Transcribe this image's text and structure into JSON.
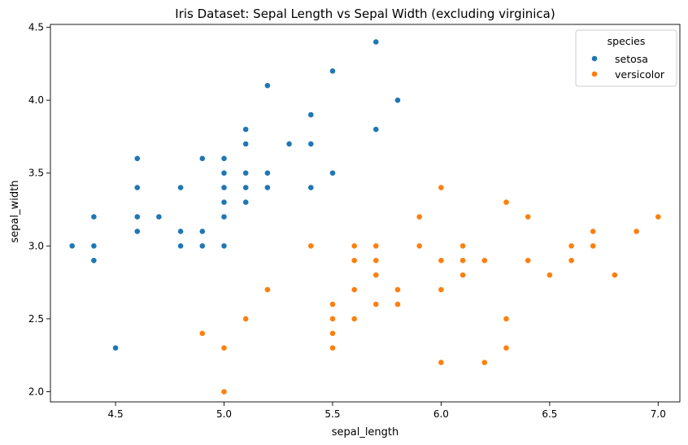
{
  "chart_data": {
    "type": "scatter",
    "title": "Iris Dataset: Sepal Length vs Sepal Width (excluding virginica)",
    "xlabel": "sepal_length",
    "ylabel": "sepal_width",
    "xlim": [
      4.2,
      7.1
    ],
    "ylim": [
      1.93,
      4.52
    ],
    "xticks": [
      "4.5",
      "5.0",
      "5.5",
      "6.0",
      "6.5",
      "7.0"
    ],
    "yticks": [
      "2.0",
      "2.5",
      "3.0",
      "3.5",
      "4.0",
      "4.5"
    ],
    "grid": false,
    "legend": {
      "title": "species",
      "position": "top-right"
    },
    "series": [
      {
        "name": "setosa",
        "color": "#1f77b4",
        "points": [
          [
            4.3,
            3.0
          ],
          [
            4.4,
            2.9
          ],
          [
            4.4,
            3.0
          ],
          [
            4.4,
            3.2
          ],
          [
            4.5,
            2.3
          ],
          [
            4.6,
            3.1
          ],
          [
            4.6,
            3.2
          ],
          [
            4.6,
            3.4
          ],
          [
            4.6,
            3.6
          ],
          [
            4.7,
            3.2
          ],
          [
            4.8,
            3.0
          ],
          [
            4.8,
            3.1
          ],
          [
            4.8,
            3.4
          ],
          [
            4.9,
            3.0
          ],
          [
            4.9,
            3.1
          ],
          [
            4.9,
            3.6
          ],
          [
            5.0,
            3.0
          ],
          [
            5.0,
            3.2
          ],
          [
            5.0,
            3.3
          ],
          [
            5.0,
            3.4
          ],
          [
            5.0,
            3.5
          ],
          [
            5.0,
            3.6
          ],
          [
            5.1,
            3.3
          ],
          [
            5.1,
            3.4
          ],
          [
            5.1,
            3.5
          ],
          [
            5.1,
            3.7
          ],
          [
            5.1,
            3.8
          ],
          [
            5.2,
            3.4
          ],
          [
            5.2,
            3.5
          ],
          [
            5.2,
            4.1
          ],
          [
            5.3,
            3.7
          ],
          [
            5.4,
            3.4
          ],
          [
            5.4,
            3.7
          ],
          [
            5.4,
            3.9
          ],
          [
            5.5,
            3.5
          ],
          [
            5.5,
            4.2
          ],
          [
            5.7,
            3.8
          ],
          [
            5.7,
            4.4
          ],
          [
            5.8,
            4.0
          ]
        ]
      },
      {
        "name": "versicolor",
        "color": "#ff7f0e",
        "points": [
          [
            4.9,
            2.4
          ],
          [
            5.0,
            2.0
          ],
          [
            5.0,
            2.3
          ],
          [
            5.1,
            2.5
          ],
          [
            5.2,
            2.7
          ],
          [
            5.4,
            3.0
          ],
          [
            5.5,
            2.3
          ],
          [
            5.5,
            2.4
          ],
          [
            5.5,
            2.5
          ],
          [
            5.5,
            2.6
          ],
          [
            5.6,
            2.5
          ],
          [
            5.6,
            2.7
          ],
          [
            5.6,
            2.9
          ],
          [
            5.6,
            3.0
          ],
          [
            5.7,
            2.6
          ],
          [
            5.7,
            2.8
          ],
          [
            5.7,
            2.9
          ],
          [
            5.7,
            3.0
          ],
          [
            5.8,
            2.6
          ],
          [
            5.8,
            2.7
          ],
          [
            5.9,
            3.0
          ],
          [
            5.9,
            3.2
          ],
          [
            6.0,
            2.2
          ],
          [
            6.0,
            2.7
          ],
          [
            6.0,
            2.9
          ],
          [
            6.0,
            3.4
          ],
          [
            6.1,
            2.8
          ],
          [
            6.1,
            2.9
          ],
          [
            6.1,
            3.0
          ],
          [
            6.2,
            2.2
          ],
          [
            6.2,
            2.9
          ],
          [
            6.3,
            2.3
          ],
          [
            6.3,
            2.5
          ],
          [
            6.3,
            3.3
          ],
          [
            6.4,
            2.9
          ],
          [
            6.4,
            3.2
          ],
          [
            6.5,
            2.8
          ],
          [
            6.6,
            2.9
          ],
          [
            6.6,
            3.0
          ],
          [
            6.7,
            3.0
          ],
          [
            6.7,
            3.1
          ],
          [
            6.8,
            2.8
          ],
          [
            6.9,
            3.1
          ],
          [
            7.0,
            3.2
          ]
        ]
      }
    ]
  }
}
